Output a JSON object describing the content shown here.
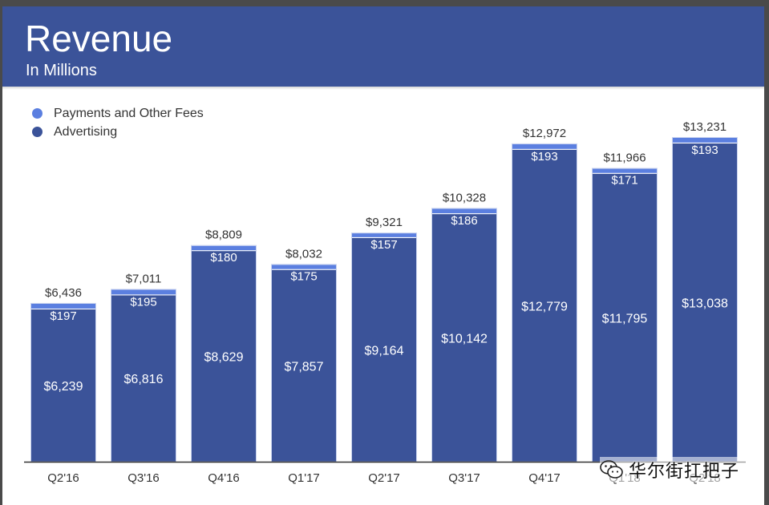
{
  "header": {
    "title": "Revenue",
    "subtitle": "In Millions"
  },
  "legend": [
    {
      "label": "Payments and Other Fees",
      "color": "#5b7fe0"
    },
    {
      "label": "Advertising",
      "color": "#3b5399"
    }
  ],
  "watermark": {
    "text": "华尔街扛把子",
    "icon": "wechat-logo-icon"
  },
  "chart_data": {
    "type": "bar",
    "stacked": true,
    "title": "Revenue",
    "subtitle": "In Millions",
    "categories": [
      "Q2'16",
      "Q3'16",
      "Q4'16",
      "Q1'17",
      "Q2'17",
      "Q3'17",
      "Q4'17",
      "Q1'18",
      "Q2'18"
    ],
    "series": [
      {
        "name": "Advertising",
        "color": "#3b5399",
        "values": [
          6239,
          6816,
          8629,
          7857,
          9164,
          10142,
          12779,
          11795,
          13038
        ],
        "labels": [
          "$6,239",
          "$6,816",
          "$8,629",
          "$7,857",
          "$9,164",
          "$10,142",
          "$12,779",
          "$11,795",
          "$13,038"
        ]
      },
      {
        "name": "Payments and Other Fees",
        "color": "#5b7fe0",
        "values": [
          197,
          195,
          180,
          175,
          157,
          186,
          193,
          171,
          193
        ],
        "labels": [
          "$197",
          "$195",
          "$180",
          "$175",
          "$157",
          "$186",
          "$193",
          "$171",
          "$193"
        ]
      }
    ],
    "totals": [
      6436,
      7011,
      8809,
      8032,
      9321,
      10328,
      12972,
      11966,
      13231
    ],
    "total_labels": [
      "$6,436",
      "$7,011",
      "$8,809",
      "$8,032",
      "$9,321",
      "$10,328",
      "$12,972",
      "$11,966",
      "$13,231"
    ],
    "ylim": [
      0,
      15000
    ],
    "xlabel": "",
    "ylabel": "",
    "grid": false,
    "legend_position": "top-left"
  }
}
